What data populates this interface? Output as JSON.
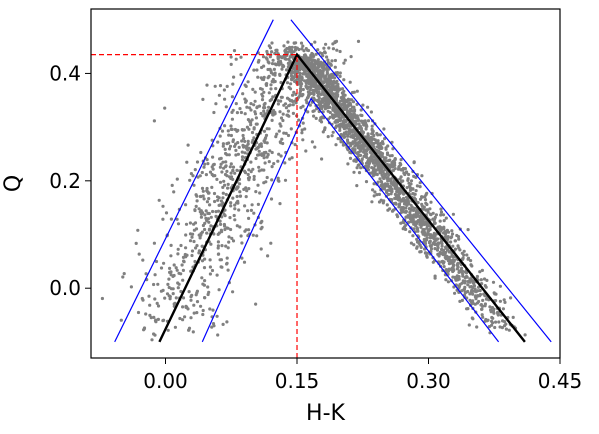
{
  "chart_data": {
    "type": "scatter",
    "title": "",
    "xlabel": "H-K",
    "ylabel": "Q",
    "xlim": [
      -0.085,
      0.45
    ],
    "ylim": [
      -0.13,
      0.52
    ],
    "xticks": [
      0.0,
      0.15,
      0.3,
      0.45
    ],
    "xtick_labels": [
      "0.00",
      "0.15",
      "0.30",
      "0.45"
    ],
    "yticks": [
      0.0,
      0.2,
      0.4
    ],
    "ytick_labels": [
      "0.0",
      "0.2",
      "0.4"
    ],
    "grid": false,
    "scatter": {
      "color": "#808080",
      "n_points": 3000,
      "peak": [
        0.15,
        0.435
      ],
      "left_slope": 3.35,
      "right_slope": -2.18,
      "y_range": [
        -0.12,
        0.5
      ]
    },
    "lines": [
      {
        "color": "#000000",
        "points": [
          [
            -0.007,
            -0.1
          ],
          [
            0.15,
            0.435
          ],
          [
            0.41,
            -0.1
          ]
        ]
      },
      {
        "color": "#0000ff",
        "points": [
          [
            -0.058,
            -0.1
          ],
          [
            0.123,
            0.5
          ]
        ]
      },
      {
        "color": "#0000ff",
        "points": [
          [
            0.042,
            -0.1
          ],
          [
            0.166,
            0.353
          ],
          [
            0.38,
            -0.1
          ]
        ]
      },
      {
        "color": "#0000ff",
        "points": [
          [
            0.143,
            0.5
          ],
          [
            0.44,
            -0.1
          ]
        ]
      }
    ],
    "reference_lines": [
      {
        "color": "#ff0000",
        "style": "dashed",
        "orientation": "horizontal",
        "y": 0.435,
        "x_from": -0.085,
        "x_to": 0.15
      },
      {
        "color": "#ff0000",
        "style": "dashed",
        "orientation": "vertical",
        "x": 0.15,
        "y_from": -0.13,
        "y_to": 0.435
      }
    ]
  }
}
